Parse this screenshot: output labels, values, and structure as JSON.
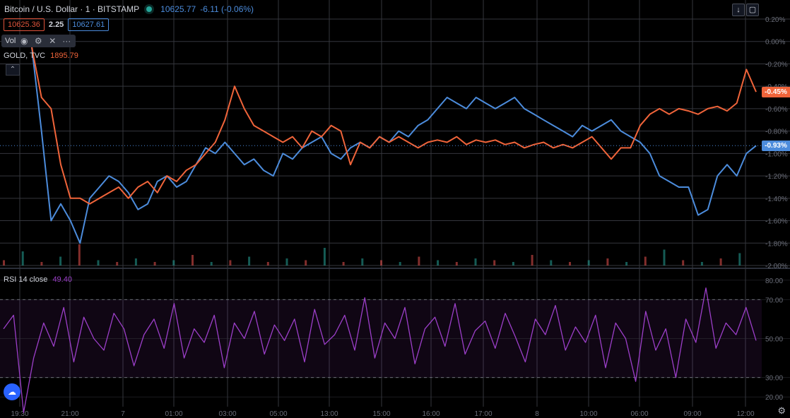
{
  "header": {
    "symbol": "Bitcoin / U.S. Dollar · 1 · BITSTAMP",
    "last": "10625.77",
    "change": "-6.11 (-0.06%)",
    "bid": "10625.36",
    "spread": "2.25",
    "ask": "10627.61"
  },
  "vol_row": {
    "label": "Vol"
  },
  "compare": {
    "label": "GOLD, TVC",
    "value": "1895.79"
  },
  "rsi": {
    "label": "RSI 14 close",
    "value": "49.40"
  },
  "tags": {
    "gold": "-0.45%",
    "btc": "-0.93%"
  },
  "colors": {
    "btc": "#4c8cdc",
    "gold": "#f0643a",
    "rsi": "#9c3fc9",
    "grid": "#34363d"
  },
  "chart_data": [
    {
      "type": "line",
      "title": "Bitcoin / U.S. Dollar · 1 · BITSTAMP",
      "xlabel": "",
      "ylabel": "",
      "x_ticks": [
        "19:30",
        "21:00",
        "7",
        "01:00",
        "03:00",
        "05:00",
        "13:00",
        "15:00",
        "16:00",
        "17:00",
        "8",
        "10:00",
        "06:00",
        "09:00",
        "12:00"
      ],
      "y_ticks": [
        "0.20%",
        "0.00%",
        "-0.20%",
        "-0.40%",
        "-0.60%",
        "-0.80%",
        "-1.00%",
        "-1.20%",
        "-1.40%",
        "-1.60%",
        "-1.80%",
        "-2.00%"
      ],
      "ylim": [
        -2.0,
        0.2
      ],
      "grid": true,
      "series": [
        {
          "name": "Bitcoin / U.S. Dollar",
          "color": "#4c8cdc",
          "x": [
            0,
            1,
            2,
            3,
            4,
            5,
            6,
            7,
            8,
            9,
            10,
            11,
            12,
            13,
            14,
            15,
            16,
            17,
            18,
            19,
            20,
            21,
            22,
            23,
            24,
            25,
            26,
            27,
            28,
            29,
            30,
            31,
            32,
            33,
            34,
            35,
            36,
            37,
            38,
            39,
            40,
            41,
            42,
            43,
            44,
            45,
            46,
            47,
            48,
            49,
            50,
            51,
            52,
            53,
            54,
            55,
            56,
            57,
            58,
            59,
            60,
            61,
            62,
            63,
            64,
            65,
            66,
            67,
            68,
            69,
            70,
            71,
            72,
            73,
            74,
            75
          ],
          "values": [
            -0.05,
            -0.8,
            -1.6,
            -1.45,
            -1.6,
            -1.8,
            -1.4,
            -1.3,
            -1.2,
            -1.25,
            -1.35,
            -1.5,
            -1.45,
            -1.25,
            -1.2,
            -1.3,
            -1.25,
            -1.1,
            -0.95,
            -1.0,
            -0.9,
            -1.0,
            -1.1,
            -1.05,
            -1.15,
            -1.2,
            -1.0,
            -1.05,
            -0.95,
            -0.9,
            -0.85,
            -1.0,
            -1.05,
            -0.95,
            -0.9,
            -0.95,
            -0.85,
            -0.9,
            -0.8,
            -0.85,
            -0.75,
            -0.7,
            -0.6,
            -0.5,
            -0.55,
            -0.6,
            -0.5,
            -0.55,
            -0.6,
            -0.55,
            -0.5,
            -0.6,
            -0.65,
            -0.7,
            -0.75,
            -0.8,
            -0.85,
            -0.75,
            -0.8,
            -0.75,
            -0.7,
            -0.8,
            -0.85,
            -0.9,
            -1.0,
            -1.2,
            -1.25,
            -1.3,
            -1.3,
            -1.55,
            -1.5,
            -1.2,
            -1.1,
            -1.2,
            -1.0,
            -0.93
          ]
        },
        {
          "name": "GOLD, TVC",
          "color": "#f0643a",
          "x": [
            0,
            1,
            2,
            3,
            4,
            5,
            6,
            7,
            8,
            9,
            10,
            11,
            12,
            13,
            14,
            15,
            16,
            17,
            18,
            19,
            20,
            21,
            22,
            23,
            24,
            25,
            26,
            27,
            28,
            29,
            30,
            31,
            32,
            33,
            34,
            35,
            36,
            37,
            38,
            39,
            40,
            41,
            42,
            43,
            44,
            45,
            46,
            47,
            48,
            49,
            50,
            51,
            52,
            53,
            54,
            55,
            56,
            57,
            58,
            59,
            60,
            61,
            62,
            63,
            64,
            65,
            66,
            67,
            68,
            69,
            70,
            71,
            72,
            73,
            74,
            75
          ],
          "values": [
            -0.05,
            -0.5,
            -0.6,
            -1.1,
            -1.4,
            -1.4,
            -1.45,
            -1.4,
            -1.35,
            -1.3,
            -1.4,
            -1.3,
            -1.25,
            -1.35,
            -1.2,
            -1.25,
            -1.15,
            -1.1,
            -1.0,
            -0.9,
            -0.7,
            -0.4,
            -0.6,
            -0.75,
            -0.8,
            -0.85,
            -0.9,
            -0.85,
            -0.95,
            -0.8,
            -0.85,
            -0.75,
            -0.8,
            -1.1,
            -0.9,
            -0.95,
            -0.85,
            -0.9,
            -0.85,
            -0.9,
            -0.95,
            -0.9,
            -0.88,
            -0.9,
            -0.85,
            -0.92,
            -0.88,
            -0.9,
            -0.88,
            -0.92,
            -0.9,
            -0.95,
            -0.92,
            -0.9,
            -0.95,
            -0.92,
            -0.95,
            -0.9,
            -0.85,
            -0.95,
            -1.05,
            -0.95,
            -0.95,
            -0.75,
            -0.65,
            -0.6,
            -0.65,
            -0.6,
            -0.62,
            -0.65,
            -0.6,
            -0.58,
            -0.62,
            -0.55,
            -0.25,
            -0.45
          ]
        }
      ]
    },
    {
      "type": "line",
      "title": "RSI 14 close",
      "y_ticks": [
        "80.00",
        "70.00",
        "50.00",
        "30.00",
        "20.00"
      ],
      "ylim": [
        15,
        85
      ],
      "bands": [
        30,
        70
      ],
      "series": [
        {
          "name": "RSI 14 close",
          "color": "#9c3fc9",
          "x": [
            0,
            1,
            2,
            3,
            4,
            5,
            6,
            7,
            8,
            9,
            10,
            11,
            12,
            13,
            14,
            15,
            16,
            17,
            18,
            19,
            20,
            21,
            22,
            23,
            24,
            25,
            26,
            27,
            28,
            29,
            30,
            31,
            32,
            33,
            34,
            35,
            36,
            37,
            38,
            39,
            40,
            41,
            42,
            43,
            44,
            45,
            46,
            47,
            48,
            49,
            50,
            51,
            52,
            53,
            54,
            55,
            56,
            57,
            58,
            59,
            60,
            61,
            62,
            63,
            64,
            65,
            66,
            67,
            68,
            69,
            70,
            71,
            72,
            73,
            74,
            75
          ],
          "values": [
            55,
            62,
            12,
            40,
            58,
            46,
            66,
            38,
            61,
            50,
            44,
            63,
            55,
            36,
            52,
            60,
            45,
            68,
            40,
            55,
            48,
            62,
            35,
            58,
            50,
            64,
            42,
            57,
            49,
            60,
            38,
            65,
            47,
            52,
            62,
            44,
            71,
            40,
            58,
            50,
            66,
            37,
            55,
            61,
            46,
            68,
            42,
            54,
            59,
            45,
            63,
            51,
            38,
            60,
            52,
            67,
            44,
            56,
            48,
            62,
            35,
            58,
            50,
            28,
            64,
            44,
            55,
            30,
            60,
            48,
            76,
            45,
            58,
            52,
            66,
            49
          ]
        }
      ]
    },
    {
      "type": "bar",
      "title": "Vol",
      "categories": [
        0,
        1,
        2,
        3,
        4,
        5,
        6,
        7,
        8,
        9,
        10,
        11,
        12,
        13,
        14,
        15,
        16,
        17,
        18,
        19,
        20,
        21,
        22,
        23,
        24,
        25,
        26,
        27,
        28,
        29,
        30,
        31,
        32,
        33,
        34,
        35,
        36,
        37,
        38,
        39
      ],
      "values": [
        3,
        8,
        2,
        5,
        12,
        3,
        2,
        4,
        2,
        3,
        6,
        2,
        3,
        5,
        2,
        4,
        3,
        10,
        2,
        4,
        3,
        2,
        5,
        3,
        2,
        4,
        3,
        2,
        6,
        3,
        2,
        3,
        4,
        2,
        5,
        9,
        3,
        2,
        4,
        7
      ]
    }
  ]
}
